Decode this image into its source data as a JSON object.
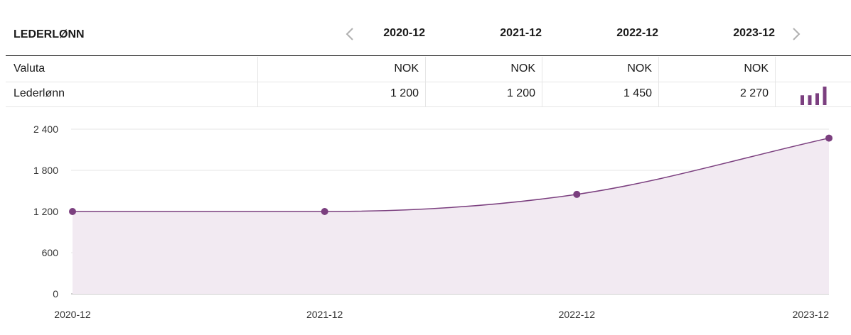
{
  "table": {
    "title": "LEDERLØNN",
    "periods": [
      "2020-12",
      "2021-12",
      "2022-12",
      "2023-12"
    ],
    "rows": [
      {
        "label": "Valuta",
        "values": [
          "NOK",
          "NOK",
          "NOK",
          "NOK"
        ]
      },
      {
        "label": "Lederlønn",
        "values": [
          "1 200",
          "1 200",
          "1 450",
          "2 270"
        ]
      }
    ]
  },
  "colors": {
    "accent": "#7b3f7f",
    "fill": "#f2eaf2",
    "grid": "#e6e6e6"
  },
  "icons": {
    "prev": "chevron-left-icon",
    "next": "chevron-right-icon",
    "spark": "bar-chart-icon"
  },
  "chart_data": {
    "type": "area",
    "x": [
      "2020-12",
      "2021-12",
      "2022-12",
      "2023-12"
    ],
    "series": [
      {
        "values": [
          1200,
          1200,
          1450,
          2270
        ]
      }
    ],
    "ylim": [
      0,
      2400
    ],
    "yticks": [
      0,
      600,
      1200,
      1800,
      2400
    ],
    "ytick_labels": [
      "0",
      "600",
      "1 200",
      "1 800",
      "2 400"
    ],
    "grid": true,
    "legend": "none"
  }
}
